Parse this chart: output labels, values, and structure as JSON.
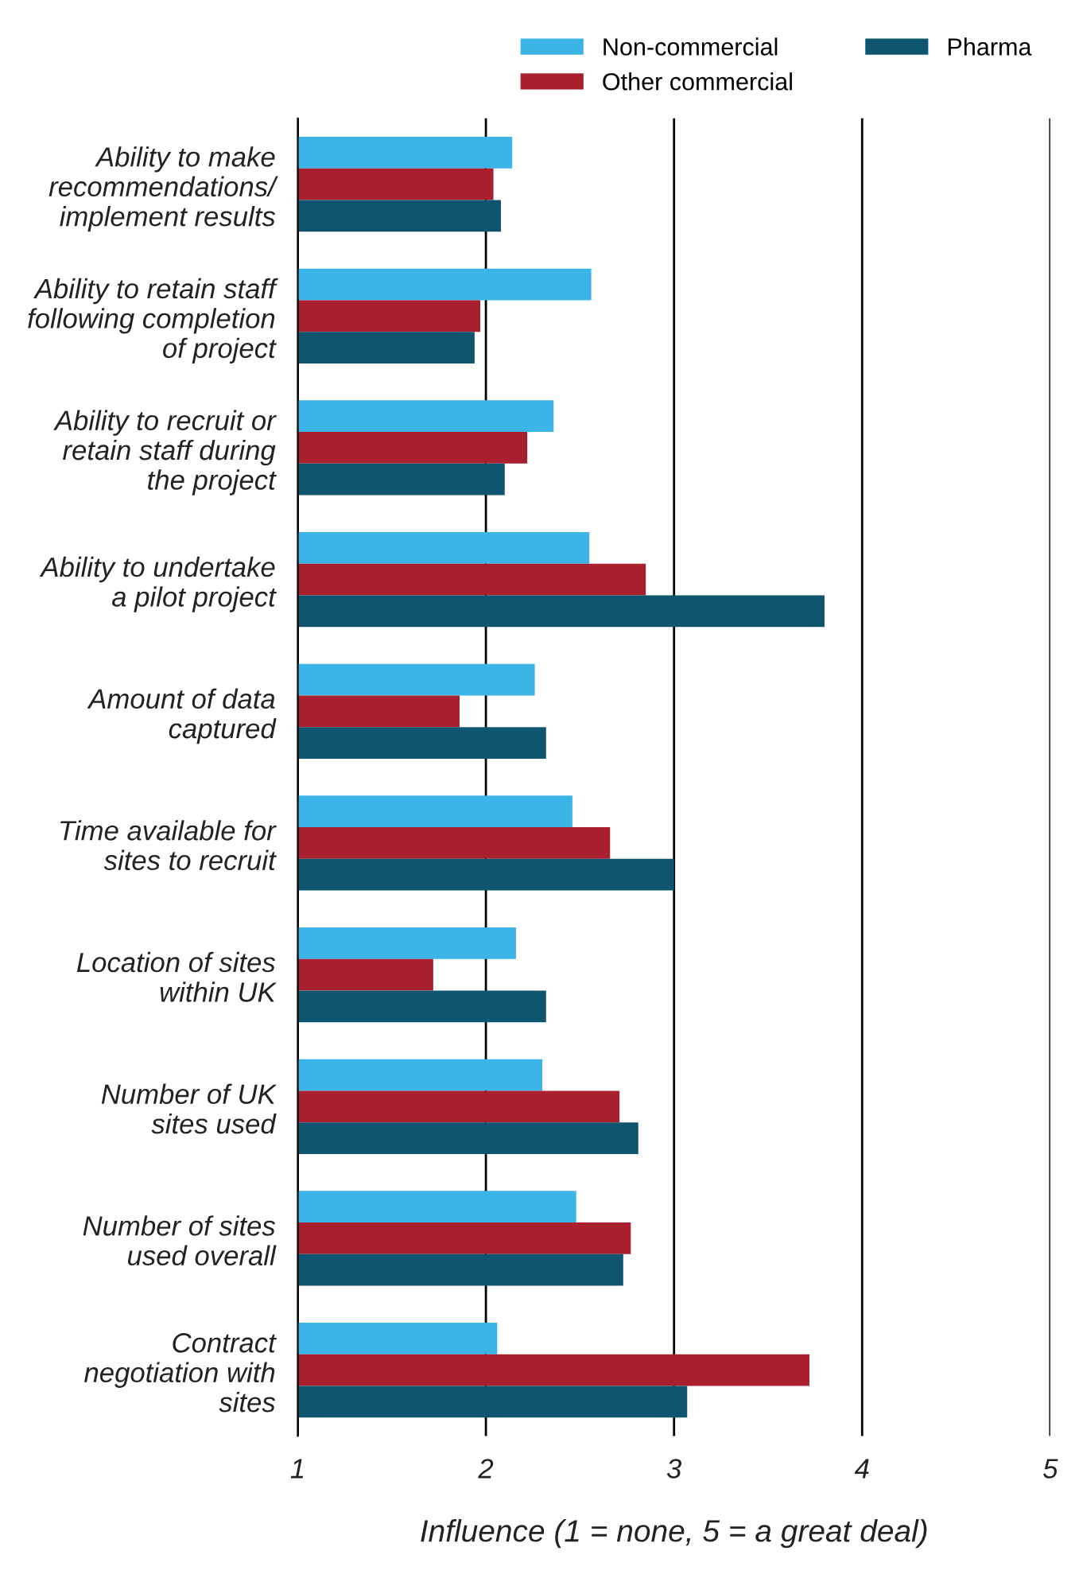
{
  "chart_data": {
    "type": "bar",
    "orientation": "horizontal",
    "xlabel": "Influence (1 = none, 5 = a great deal)",
    "categories": [
      "Ability to make\nrecommendations/\nimplement results",
      "Ability to retain staff\nfollowing completion\nof project",
      "Ability to recruit or\nretain staff during\nthe project",
      "Ability to undertake\na pilot project",
      "Amount of data\ncaptured",
      "Time available for\nsites to recruit",
      "Location of sites\nwithin UK",
      "Number of UK\nsites used",
      "Number of sites\nused overall",
      "Contract\nnegotiation with\nsites"
    ],
    "series": [
      {
        "name": "Non-commercial",
        "color": "#3cb4e8",
        "values": [
          2.14,
          2.56,
          2.36,
          2.55,
          2.26,
          2.46,
          2.16,
          2.3,
          2.48,
          2.06
        ]
      },
      {
        "name": "Other commercial",
        "color": "#a8202d",
        "values": [
          2.04,
          1.97,
          2.22,
          2.85,
          1.86,
          2.66,
          1.72,
          2.71,
          2.77,
          3.72
        ]
      },
      {
        "name": "Pharma",
        "color": "#0e5570",
        "values": [
          2.08,
          1.94,
          2.1,
          3.8,
          2.32,
          3.0,
          2.32,
          2.81,
          2.73,
          3.07
        ]
      }
    ],
    "xlim": [
      1,
      5
    ],
    "xticks": [
      1,
      2,
      3,
      4,
      5
    ],
    "grid": "x",
    "legend": "top right"
  }
}
